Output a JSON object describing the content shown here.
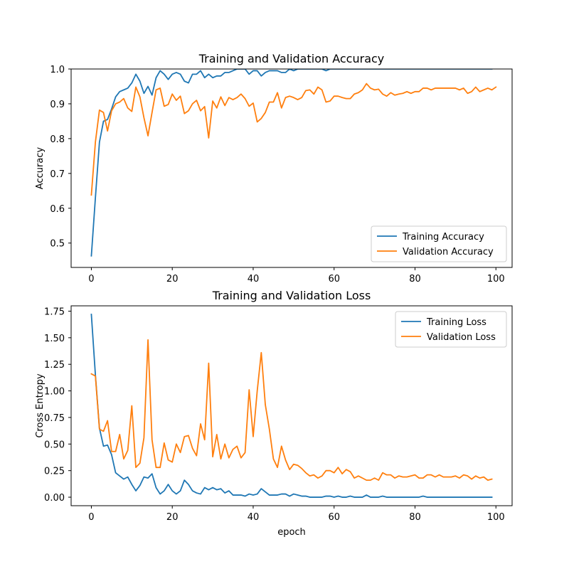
{
  "chart_data": [
    {
      "type": "line",
      "title": "Training and Validation Accuracy",
      "xlabel": "",
      "ylabel": "Accuracy",
      "xlim": [
        -5,
        104
      ],
      "ylim": [
        0.43,
        1.0
      ],
      "xticks": [
        0,
        20,
        40,
        60,
        80,
        100
      ],
      "yticks": [
        0.5,
        0.6,
        0.7,
        0.8,
        0.9,
        1.0
      ],
      "ytick_labels": [
        "0.5",
        "0.6",
        "0.7",
        "0.8",
        "0.9",
        "1.0"
      ],
      "legend_position": "lower-right",
      "grid": false,
      "series": [
        {
          "name": "Training Accuracy",
          "color": "#1f77b4",
          "values": [
            0.463,
            0.63,
            0.79,
            0.85,
            0.855,
            0.885,
            0.92,
            0.935,
            0.94,
            0.945,
            0.96,
            0.985,
            0.965,
            0.93,
            0.95,
            0.925,
            0.975,
            0.995,
            0.985,
            0.97,
            0.985,
            0.99,
            0.985,
            0.965,
            0.96,
            0.985,
            0.985,
            0.995,
            0.975,
            0.985,
            0.975,
            0.98,
            0.98,
            0.99,
            0.99,
            0.995,
            1.0,
            1.0,
            1.0,
            0.985,
            0.995,
            0.995,
            0.98,
            0.99,
            0.995,
            0.995,
            0.995,
            0.99,
            0.99,
            1.0,
            0.995,
            1.0,
            1.0,
            1.0,
            1.0,
            1.0,
            1.0,
            1.0,
            0.995,
            1.0,
            1.0,
            1.0,
            1.0,
            1.0,
            1.0,
            1.0,
            1.0,
            1.0,
            1.0,
            1.0,
            1.0,
            1.0,
            1.0,
            1.0,
            1.0,
            1.0,
            1.0,
            1.0,
            1.0,
            1.0,
            1.0,
            1.0,
            1.0,
            1.0,
            1.0,
            1.0,
            1.0,
            1.0,
            1.0,
            1.0,
            1.0,
            1.0,
            1.0,
            1.0,
            1.0,
            1.0,
            1.0,
            1.0,
            1.0,
            1.0
          ]
        },
        {
          "name": "Validation Accuracy",
          "color": "#ff7f0e",
          "values": [
            0.638,
            0.79,
            0.882,
            0.875,
            0.822,
            0.88,
            0.9,
            0.905,
            0.915,
            0.888,
            0.878,
            0.948,
            0.92,
            0.86,
            0.808,
            0.875,
            0.94,
            0.945,
            0.893,
            0.898,
            0.928,
            0.91,
            0.922,
            0.872,
            0.88,
            0.9,
            0.91,
            0.88,
            0.892,
            0.802,
            0.908,
            0.888,
            0.92,
            0.895,
            0.918,
            0.912,
            0.918,
            0.928,
            0.915,
            0.893,
            0.902,
            0.848,
            0.858,
            0.875,
            0.905,
            0.905,
            0.932,
            0.888,
            0.918,
            0.922,
            0.918,
            0.912,
            0.918,
            0.938,
            0.94,
            0.928,
            0.948,
            0.94,
            0.905,
            0.908,
            0.922,
            0.922,
            0.918,
            0.915,
            0.915,
            0.928,
            0.932,
            0.94,
            0.958,
            0.945,
            0.94,
            0.942,
            0.928,
            0.922,
            0.932,
            0.925,
            0.928,
            0.93,
            0.935,
            0.93,
            0.935,
            0.935,
            0.945,
            0.945,
            0.94,
            0.945,
            0.945,
            0.945,
            0.945,
            0.945,
            0.945,
            0.94,
            0.945,
            0.93,
            0.935,
            0.948,
            0.935,
            0.94,
            0.945,
            0.94,
            0.948
          ]
        }
      ]
    },
    {
      "type": "line",
      "title": "Training and Validation Loss",
      "xlabel": "epoch",
      "ylabel": "Cross Entropy",
      "xlim": [
        -5,
        104
      ],
      "ylim": [
        -0.08,
        1.8
      ],
      "xticks": [
        0,
        20,
        40,
        60,
        80,
        100
      ],
      "yticks": [
        0.0,
        0.25,
        0.5,
        0.75,
        1.0,
        1.25,
        1.5,
        1.75
      ],
      "ytick_labels": [
        "0.00",
        "0.25",
        "0.50",
        "0.75",
        "1.00",
        "1.25",
        "1.50",
        "1.75"
      ],
      "legend_position": "upper-right",
      "grid": false,
      "series": [
        {
          "name": "Training Loss",
          "color": "#1f77b4",
          "values": [
            1.72,
            1.15,
            0.65,
            0.48,
            0.49,
            0.4,
            0.23,
            0.2,
            0.17,
            0.19,
            0.12,
            0.06,
            0.11,
            0.19,
            0.18,
            0.22,
            0.09,
            0.03,
            0.06,
            0.12,
            0.06,
            0.03,
            0.06,
            0.16,
            0.12,
            0.06,
            0.04,
            0.03,
            0.09,
            0.07,
            0.09,
            0.07,
            0.08,
            0.04,
            0.06,
            0.02,
            0.02,
            0.02,
            0.01,
            0.03,
            0.02,
            0.03,
            0.08,
            0.05,
            0.02,
            0.02,
            0.02,
            0.03,
            0.03,
            0.01,
            0.03,
            0.02,
            0.01,
            0.01,
            0.0,
            0.0,
            0.0,
            0.0,
            0.01,
            0.01,
            0.0,
            0.01,
            0.0,
            0.0,
            0.01,
            0.0,
            0.0,
            0.0,
            0.02,
            0.0,
            0.0,
            0.0,
            0.01,
            0.0,
            0.0,
            0.0,
            0.0,
            0.0,
            0.0,
            0.0,
            0.0,
            0.0,
            0.01,
            0.0,
            0.0,
            0.0,
            0.0,
            0.0,
            0.0,
            0.0,
            0.0,
            0.0,
            0.0,
            0.0,
            0.0,
            0.0,
            0.0,
            0.0,
            0.0,
            0.0
          ]
        },
        {
          "name": "Validation Loss",
          "color": "#ff7f0e",
          "values": [
            1.16,
            1.14,
            0.64,
            0.62,
            0.72,
            0.43,
            0.43,
            0.59,
            0.36,
            0.44,
            0.86,
            0.28,
            0.32,
            0.56,
            1.48,
            0.54,
            0.28,
            0.28,
            0.51,
            0.35,
            0.33,
            0.5,
            0.42,
            0.57,
            0.58,
            0.46,
            0.39,
            0.69,
            0.54,
            1.26,
            0.38,
            0.59,
            0.36,
            0.5,
            0.37,
            0.45,
            0.48,
            0.37,
            0.42,
            1.01,
            0.57,
            1.0,
            1.36,
            0.87,
            0.64,
            0.36,
            0.28,
            0.48,
            0.35,
            0.26,
            0.31,
            0.3,
            0.27,
            0.23,
            0.2,
            0.21,
            0.18,
            0.2,
            0.25,
            0.25,
            0.23,
            0.28,
            0.22,
            0.26,
            0.24,
            0.18,
            0.2,
            0.18,
            0.16,
            0.16,
            0.18,
            0.16,
            0.23,
            0.21,
            0.21,
            0.18,
            0.2,
            0.19,
            0.19,
            0.2,
            0.21,
            0.18,
            0.18,
            0.21,
            0.21,
            0.19,
            0.21,
            0.19,
            0.19,
            0.19,
            0.2,
            0.18,
            0.21,
            0.2,
            0.17,
            0.2,
            0.18,
            0.19,
            0.16,
            0.17
          ]
        }
      ]
    }
  ]
}
